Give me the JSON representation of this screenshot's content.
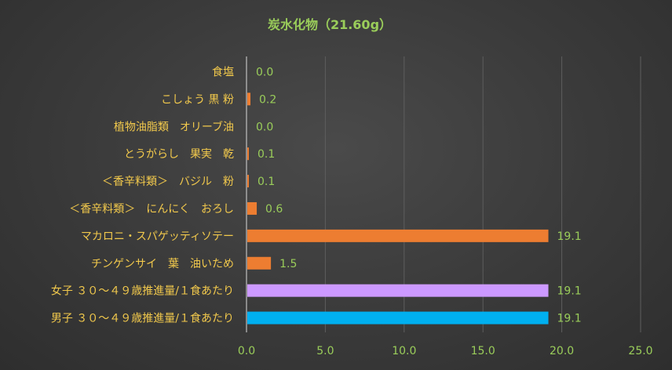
{
  "chart_data": {
    "type": "bar",
    "orientation": "horizontal",
    "title": "炭水化物（21.60g）",
    "categories": [
      "食塩",
      "こしょう 黒 粉",
      "植物油脂類　オリーブ油",
      "とうがらし　果実　乾",
      "＜香辛料類＞　バジル　粉",
      "＜香辛料類＞　にんにく　おろし",
      "マカロニ・スパゲッティソテー",
      "チンゲンサイ　葉　油いため",
      "女子 ３０～４９歳推進量/１食あたり",
      "男子 ３０～４９歳推進量/１食あたり"
    ],
    "values": [
      0.0,
      0.2,
      0.0,
      0.1,
      0.1,
      0.6,
      19.1,
      1.5,
      19.1,
      19.1
    ],
    "value_labels": [
      "0.0",
      "0.2",
      "0.0",
      "0.1",
      "0.1",
      "0.6",
      "19.1",
      "1.5",
      "19.1",
      "19.1"
    ],
    "bar_colors": [
      "#ed7d31",
      "#ed7d31",
      "#ed7d31",
      "#ed7d31",
      "#ed7d31",
      "#ed7d31",
      "#ed7d31",
      "#ed7d31",
      "#cc99ff",
      "#00b0f0"
    ],
    "xlim": [
      0,
      25
    ],
    "xticks": [
      0,
      5,
      10,
      15,
      20,
      25
    ],
    "xtick_labels": [
      "0.0",
      "5.0",
      "10.0",
      "15.0",
      "20.0",
      "25.0"
    ],
    "grid": true,
    "legend": "none",
    "colors": {
      "title": "#9acd5a",
      "category_text": "#f2c94c",
      "value_text": "#9acd5a",
      "tick_text": "#9acd5a",
      "gridline": "#5e5e5e",
      "axis_line": "#d9d9d9"
    }
  }
}
